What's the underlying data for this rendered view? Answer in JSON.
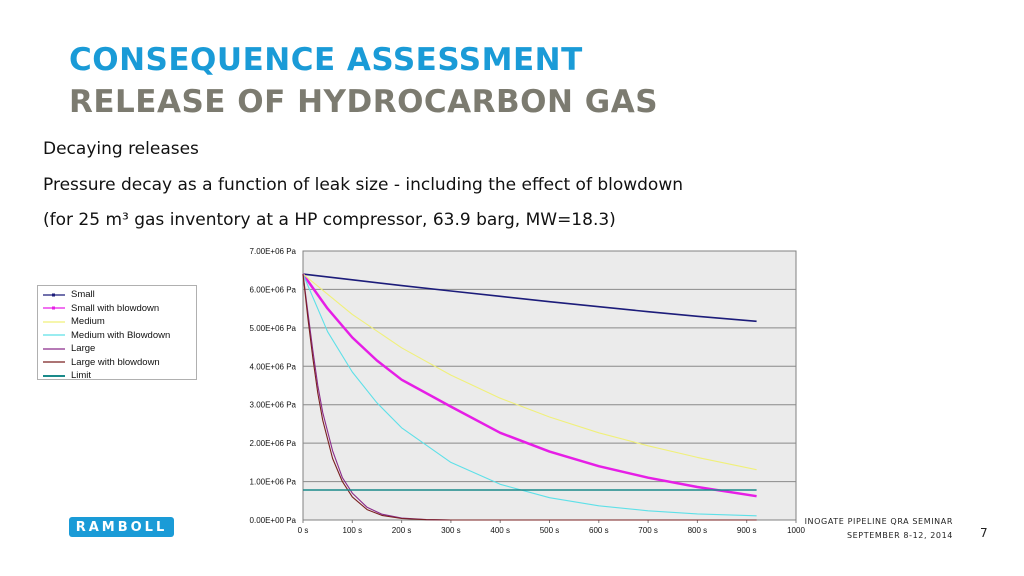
{
  "header": {
    "title_line1": "CONSEQUENCE ASSESSMENT",
    "title_line2": "RELEASE OF HYDROCARBON GAS"
  },
  "body": {
    "line1": "Decaying releases",
    "line2": "Pressure decay as a function of leak size - including the effect of blowdown",
    "line3": "(for 25 m³ gas inventory at a HP compressor, 63.9 barg, MW=18.3)"
  },
  "chart_data": {
    "type": "line",
    "title": "",
    "xlabel": "",
    "ylabel": "",
    "xlim": [
      0,
      1000
    ],
    "ylim": [
      0,
      7000000
    ],
    "x_ticks": [
      "0 s",
      "100 s",
      "200 s",
      "300 s",
      "400 s",
      "500 s",
      "600 s",
      "700 s",
      "800 s",
      "900 s",
      "1000"
    ],
    "y_ticks": [
      "0.00E+00 Pa",
      "1.00E+06 Pa",
      "2.00E+06 Pa",
      "3.00E+06 Pa",
      "4.00E+06 Pa",
      "5.00E+06 Pa",
      "6.00E+06 Pa",
      "7.00E+06 Pa"
    ],
    "grid": true,
    "legend_position": "left",
    "series": [
      {
        "name": "Small",
        "color": "#1c1c7a",
        "x": [
          0,
          100,
          200,
          300,
          400,
          500,
          600,
          700,
          800,
          920
        ],
        "y": [
          6400000,
          6250000,
          6100000,
          5960000,
          5820000,
          5680000,
          5550000,
          5420000,
          5300000,
          5170000
        ]
      },
      {
        "name": "Small with blowdown",
        "color": "#e61ee6",
        "x": [
          0,
          50,
          100,
          150,
          200,
          300,
          400,
          500,
          600,
          700,
          800,
          920
        ],
        "y": [
          6400000,
          5500000,
          4750000,
          4150000,
          3650000,
          2950000,
          2270000,
          1780000,
          1400000,
          1100000,
          860000,
          620000
        ]
      },
      {
        "name": "Medium",
        "color": "#f0f07a",
        "x": [
          0,
          100,
          200,
          300,
          400,
          500,
          600,
          700,
          800,
          920
        ],
        "y": [
          6400000,
          5350000,
          4480000,
          3770000,
          3170000,
          2680000,
          2270000,
          1930000,
          1630000,
          1310000
        ]
      },
      {
        "name": "Medium with Blowdown",
        "color": "#5ee0e8",
        "x": [
          0,
          50,
          100,
          150,
          200,
          300,
          400,
          500,
          600,
          700,
          800,
          920
        ],
        "y": [
          6400000,
          4900000,
          3850000,
          3050000,
          2400000,
          1500000,
          930000,
          580000,
          370000,
          240000,
          160000,
          110000
        ]
      },
      {
        "name": "Large",
        "color": "#8a2a8a",
        "x": [
          0,
          10,
          20,
          30,
          40,
          60,
          80,
          100,
          130,
          160,
          200,
          250,
          300,
          400,
          500,
          600,
          700,
          800,
          920
        ],
        "y": [
          6400000,
          5400000,
          4400000,
          3500000,
          2800000,
          1800000,
          1100000,
          700000,
          330000,
          150000,
          50000,
          10000,
          0,
          0,
          0,
          0,
          0,
          0,
          0
        ]
      },
      {
        "name": "Large with blowdown",
        "color": "#7a2020",
        "x": [
          0,
          10,
          20,
          30,
          40,
          60,
          80,
          100,
          130,
          160,
          200,
          250,
          300,
          400,
          500,
          600,
          700,
          800,
          920
        ],
        "y": [
          6400000,
          5250000,
          4200000,
          3300000,
          2600000,
          1600000,
          1000000,
          600000,
          270000,
          120000,
          40000,
          8000,
          0,
          0,
          0,
          0,
          0,
          0,
          0
        ]
      },
      {
        "name": "Limit",
        "color": "#1a8a8a",
        "x": [
          0,
          920
        ],
        "y": [
          780000,
          780000
        ]
      }
    ]
  },
  "footer": {
    "logo_text": "RAMBOLL",
    "event_name": "INOGATE PIPELINE QRA SEMINAR",
    "event_date": "SEPTEMBER 8-12, 2014",
    "page_number": "7"
  }
}
